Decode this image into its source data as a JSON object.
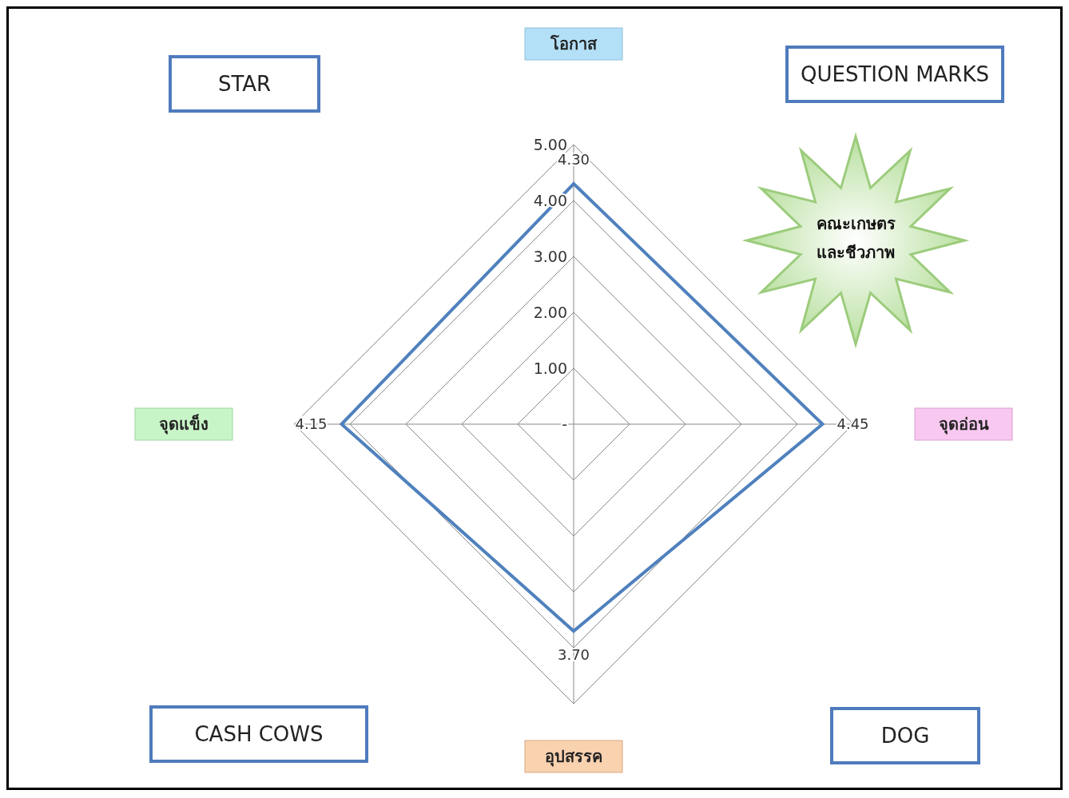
{
  "chart_data": {
    "type": "radar",
    "categories": [
      "โอกาส",
      "จุดอ่อน",
      "อุปสรรค",
      "จุดแข็ง"
    ],
    "series": [
      {
        "color": "#4f81bd",
        "values": [
          4.3,
          4.45,
          3.7,
          4.15
        ],
        "value_labels": [
          "4.30",
          "4.45",
          "3.70",
          "4.15"
        ]
      }
    ],
    "ylim": [
      0,
      5
    ],
    "yticks": [
      {
        "value": 0,
        "label": "-"
      },
      {
        "value": 1,
        "label": "1.00"
      },
      {
        "value": 2,
        "label": "2.00"
      },
      {
        "value": 3,
        "label": "3.00"
      },
      {
        "value": 4,
        "label": "4.00"
      },
      {
        "value": 5,
        "label": "5.00"
      }
    ],
    "grid": true,
    "annotations": [
      "STAR",
      "QUESTION MARKS",
      "CASH COWS",
      "DOG",
      "คณะเกษตร และชีวภาพ"
    ]
  }
}
